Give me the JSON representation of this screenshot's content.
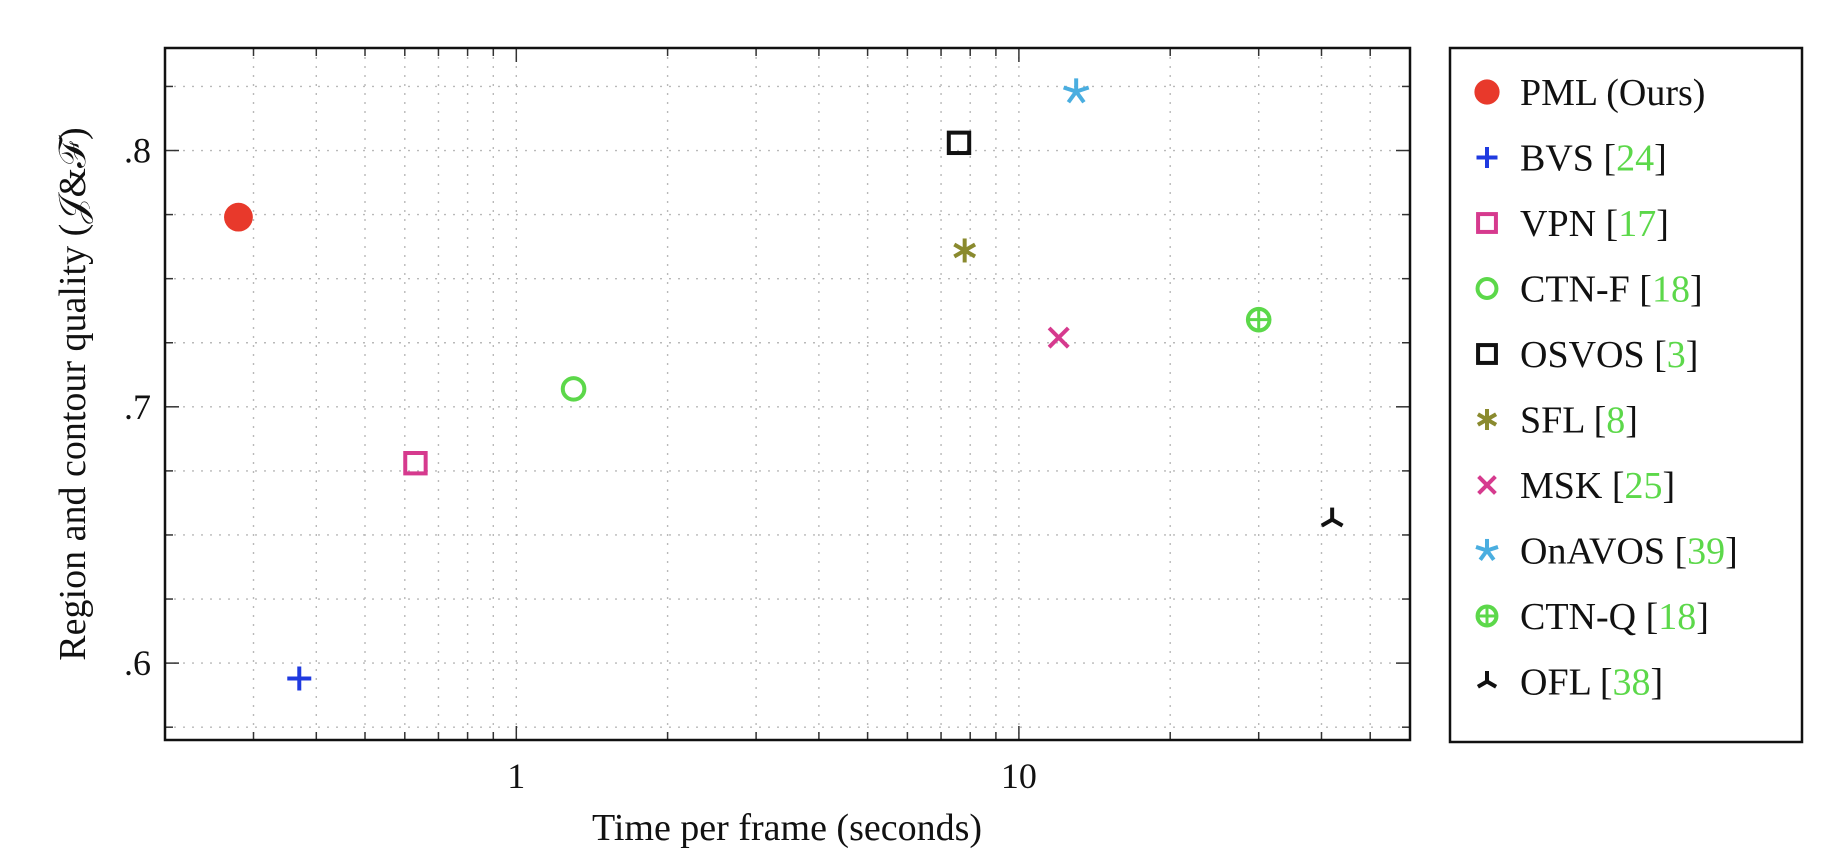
{
  "chart_data": {
    "type": "scatter",
    "x_scale": "log",
    "xlim": [
      0.2,
      60
    ],
    "ylim": [
      0.57,
      0.84
    ],
    "grid": true,
    "legend_position": "right",
    "xlabel": "Time per frame (seconds)",
    "ylabel": "Region and contour quality (𝒥&ℱ)",
    "xticks": [
      {
        "value": 1,
        "label": "1"
      },
      {
        "value": 10,
        "label": "10"
      }
    ],
    "yticks": [
      {
        "value": 0.6,
        "label": ".6"
      },
      {
        "value": 0.7,
        "label": ".7"
      },
      {
        "value": 0.8,
        "label": ".8"
      }
    ],
    "series": [
      {
        "name": "PML (Ours)",
        "ref": "",
        "marker": "filled-circle",
        "color": "#e8392b",
        "x": 0.28,
        "y": 0.774
      },
      {
        "name": "BVS",
        "ref": "24",
        "marker": "plus",
        "color": "#1f3ae0",
        "x": 0.37,
        "y": 0.594
      },
      {
        "name": "VPN",
        "ref": "17",
        "marker": "open-square",
        "color": "#d63a8e",
        "x": 0.63,
        "y": 0.678
      },
      {
        "name": "CTN-F",
        "ref": "18",
        "marker": "open-circle",
        "color": "#5cd84a",
        "x": 1.3,
        "y": 0.707
      },
      {
        "name": "OSVOS",
        "ref": "3",
        "marker": "open-square",
        "color": "#111111",
        "x": 7.6,
        "y": 0.803
      },
      {
        "name": "SFL",
        "ref": "8",
        "marker": "asterisk",
        "color": "#8a8a2e",
        "x": 7.8,
        "y": 0.761
      },
      {
        "name": "MSK",
        "ref": "25",
        "marker": "cross",
        "color": "#d63a8e",
        "x": 12,
        "y": 0.727
      },
      {
        "name": "OnAVOS",
        "ref": "39",
        "marker": "star",
        "color": "#4aaee0",
        "x": 13,
        "y": 0.823
      },
      {
        "name": "CTN-Q",
        "ref": "18",
        "marker": "oplus",
        "color": "#5cd84a",
        "x": 30,
        "y": 0.734
      },
      {
        "name": "OFL",
        "ref": "38",
        "marker": "tri-down",
        "color": "#111111",
        "x": 42,
        "y": 0.656
      }
    ]
  }
}
